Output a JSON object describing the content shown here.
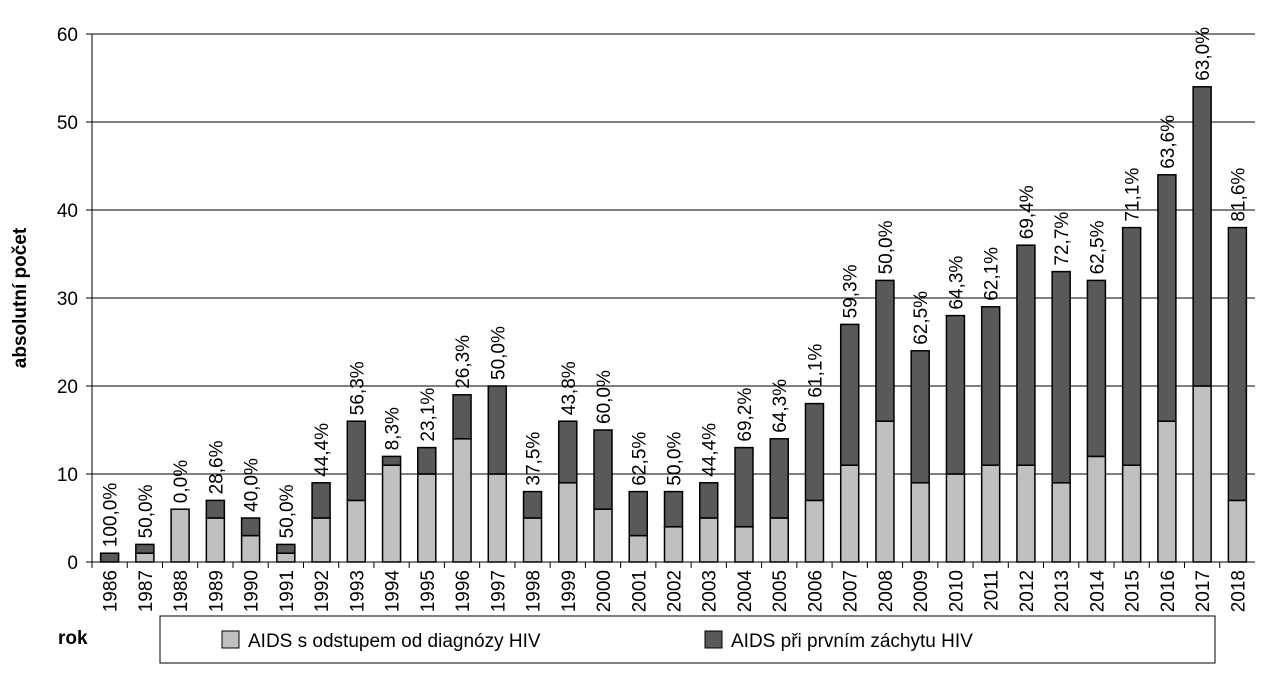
{
  "chart_data": {
    "type": "stacked_bar",
    "y_axis_label": "absolutní počet",
    "x_axis_label": "rok",
    "categories": [
      "1986",
      "1987",
      "1988",
      "1989",
      "1990",
      "1991",
      "1992",
      "1993",
      "1994",
      "1995",
      "1996",
      "1997",
      "1998",
      "1999",
      "2000",
      "2001",
      "2002",
      "2003",
      "2004",
      "2005",
      "2006",
      "2007",
      "2008",
      "2009",
      "2010",
      "2011",
      "2012",
      "2013",
      "2014",
      "2015",
      "2016",
      "2017",
      "2018"
    ],
    "series": [
      {
        "name": "AIDS s odstupem od diagnózy HIV",
        "color": "#c0c0c0",
        "values": [
          0,
          1,
          6,
          5,
          3,
          1,
          5,
          7,
          11,
          10,
          14,
          10,
          5,
          9,
          6,
          3,
          4,
          5,
          4,
          5,
          7,
          11,
          16,
          9,
          10,
          11,
          11,
          9,
          12,
          11,
          16,
          20,
          7
        ]
      },
      {
        "name": "AIDS při prvním záchytu HIV",
        "color": "#595959",
        "values": [
          1,
          1,
          0,
          2,
          2,
          1,
          4,
          9,
          1,
          3,
          5,
          10,
          3,
          7,
          9,
          5,
          4,
          4,
          9,
          9,
          11,
          16,
          16,
          15,
          18,
          18,
          25,
          24,
          20,
          27,
          28,
          34,
          31
        ]
      }
    ],
    "bar_labels": [
      "100,0%",
      "50,0%",
      "0,0%",
      "28,6%",
      "40,0%",
      "50,0%",
      "44,4%",
      "56,3%",
      "8,3%",
      "23,1%",
      "26,3%",
      "50,0%",
      "37,5%",
      "43,8%",
      "60,0%",
      "62,5%",
      "50,0%",
      "44,4%",
      "69,2%",
      "64,3%",
      "61,1%",
      "59,3%",
      "50,0%",
      "62,5%",
      "64,3%",
      "62,1%",
      "69,4%",
      "72,7%",
      "62,5%",
      "71,1%",
      "63,6%",
      "63,0%",
      "81,6%"
    ],
    "ylim": [
      0,
      60
    ],
    "yticks": [
      0,
      10,
      20,
      30,
      40,
      50,
      60
    ],
    "grid": true
  }
}
